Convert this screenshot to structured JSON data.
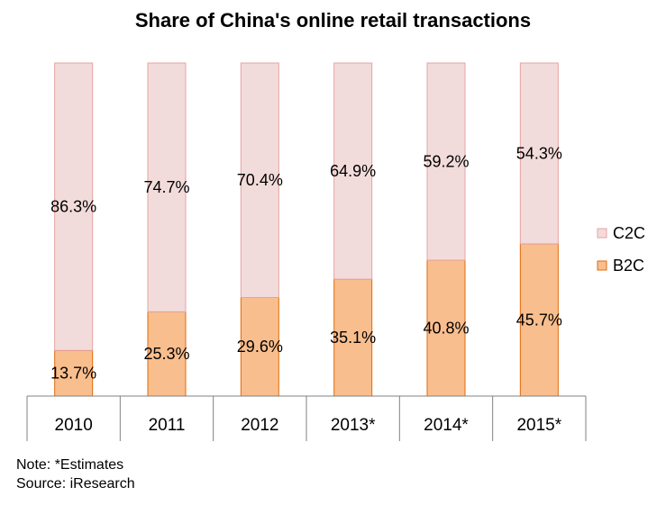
{
  "chart_data": {
    "type": "bar",
    "stacked": true,
    "title": "Share of China's online retail transactions",
    "xlabel": "",
    "ylabel": "",
    "ylim": [
      0,
      100
    ],
    "categories": [
      "2010",
      "2011",
      "2012",
      "2013*",
      "2014*",
      "2015*"
    ],
    "series": [
      {
        "name": "B2C",
        "values": [
          13.7,
          25.3,
          29.6,
          35.1,
          40.8,
          45.7
        ],
        "labels": [
          "13.7%",
          "25.3%",
          "29.6%",
          "35.1%",
          "40.8%",
          "45.7%"
        ],
        "fill": "#f9be8e",
        "stroke": "#e26b0a"
      },
      {
        "name": "C2C",
        "values": [
          86.3,
          74.7,
          70.4,
          64.9,
          59.2,
          54.3
        ],
        "labels": [
          "86.3%",
          "74.7%",
          "70.4%",
          "64.9%",
          "59.2%",
          "54.3%"
        ],
        "fill": "#f2dcdb",
        "stroke": "#e6a3a1"
      }
    ],
    "grid": false,
    "legend_position": "right",
    "legend_order": [
      "C2C",
      "B2C"
    ]
  },
  "footnotes": {
    "note": "Note: *Estimates",
    "source": "Source: iResearch"
  }
}
